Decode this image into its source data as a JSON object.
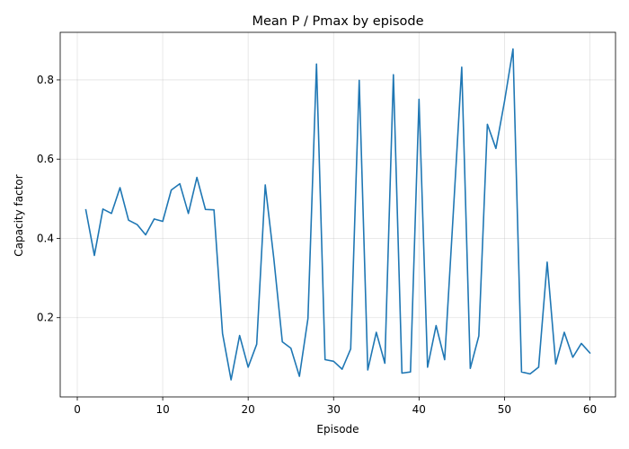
{
  "chart_data": {
    "type": "line",
    "title": "Mean P / Pmax by episode",
    "xlabel": "Episode",
    "ylabel": "Capacity factor",
    "xlim": [
      -2,
      63
    ],
    "ylim": [
      0.0,
      0.92
    ],
    "xticks": [
      0,
      10,
      20,
      30,
      40,
      50,
      60
    ],
    "yticks": [
      0.2,
      0.4,
      0.6,
      0.8
    ],
    "grid": true,
    "color": "#1f77b4",
    "series": [
      {
        "x": [
          1,
          2,
          3,
          4,
          5,
          6,
          7,
          8,
          9,
          10,
          11,
          12,
          13,
          14,
          15,
          16,
          17,
          18,
          19,
          20,
          21,
          22,
          23,
          24,
          25,
          26,
          27,
          28,
          29,
          30,
          31,
          32,
          33,
          34,
          35,
          36,
          37,
          38,
          39,
          40,
          41,
          42,
          43,
          44,
          45,
          46,
          47,
          48,
          49,
          50,
          51,
          52,
          53,
          54,
          55,
          56,
          57,
          58,
          59,
          60
        ],
        "values": [
          0.472,
          0.357,
          0.474,
          0.463,
          0.528,
          0.446,
          0.435,
          0.409,
          0.449,
          0.443,
          0.522,
          0.538,
          0.463,
          0.554,
          0.473,
          0.472,
          0.16,
          0.043,
          0.155,
          0.075,
          0.133,
          0.535,
          0.35,
          0.139,
          0.123,
          0.052,
          0.198,
          0.84,
          0.094,
          0.09,
          0.07,
          0.121,
          0.799,
          0.068,
          0.163,
          0.085,
          0.813,
          0.06,
          0.063,
          0.751,
          0.075,
          0.18,
          0.094,
          0.46,
          0.832,
          0.072,
          0.154,
          0.688,
          0.627,
          0.745,
          0.878,
          0.063,
          0.058,
          0.075,
          0.34,
          0.083,
          0.163,
          0.1,
          0.135,
          0.111
        ]
      }
    ]
  }
}
